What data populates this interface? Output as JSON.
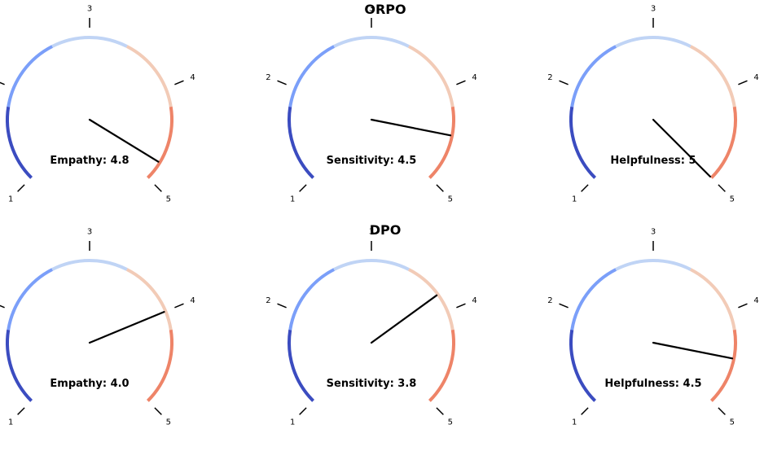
{
  "chart_data": {
    "type": "gauge",
    "scale": {
      "min": 1,
      "max": 5,
      "ticks": [
        1,
        2,
        3,
        4,
        5
      ]
    },
    "segment_colors": [
      "#3b4cc0",
      "#7b9ff9",
      "#c0d4f5",
      "#f2cbb7",
      "#ee8468"
    ],
    "rows": [
      {
        "title": "ORPO",
        "gauges": [
          {
            "label": "Empathy: 4.8",
            "metric": "Empathy",
            "value": 4.8
          },
          {
            "label": "Sensitivity: 4.5",
            "metric": "Sensitivity",
            "value": 4.5
          },
          {
            "label": "Helpfulness: 5",
            "metric": "Helpfulness",
            "value": 5
          }
        ]
      },
      {
        "title": "DPO",
        "gauges": [
          {
            "label": "Empathy: 4.0",
            "metric": "Empathy",
            "value": 4.0
          },
          {
            "label": "Sensitivity: 3.8",
            "metric": "Sensitivity",
            "value": 3.8
          },
          {
            "label": "Helpfulness: 4.5",
            "metric": "Helpfulness",
            "value": 4.5
          }
        ]
      }
    ]
  }
}
